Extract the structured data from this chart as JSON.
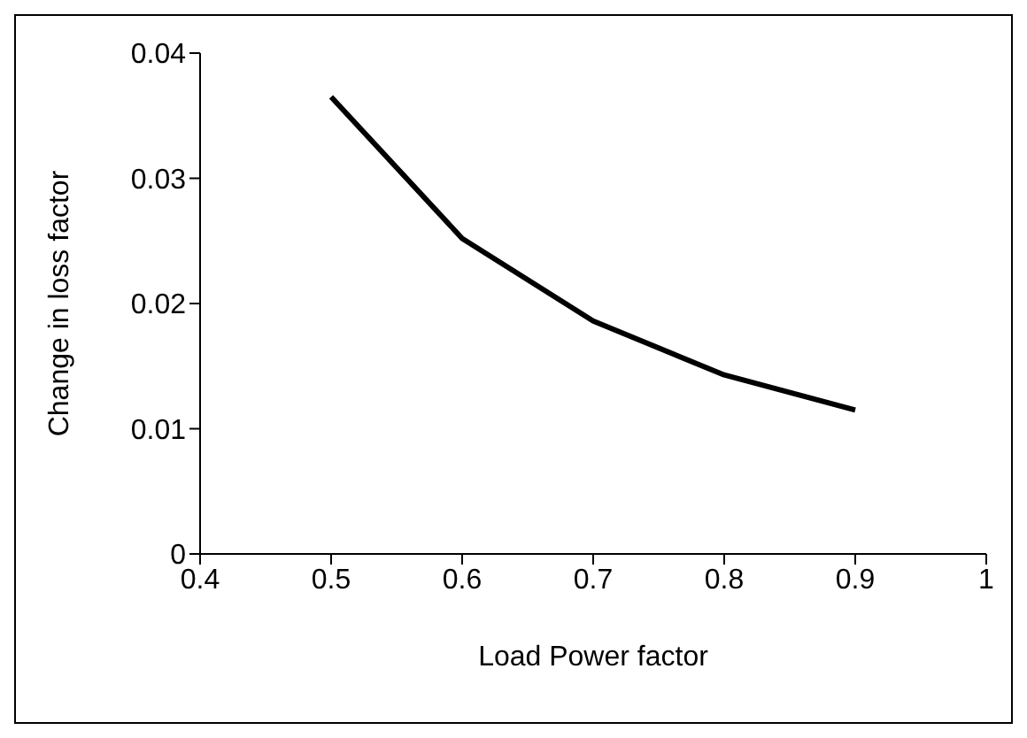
{
  "chart_data": {
    "type": "line",
    "xlabel": "Load Power factor",
    "ylabel": "Change in loss factor",
    "x": [
      0.5,
      0.6,
      0.7,
      0.8,
      0.9
    ],
    "series": [
      {
        "color": "#000000",
        "values": [
          0.0365,
          0.0252,
          0.0186,
          0.0143,
          0.0115
        ]
      }
    ],
    "xlim": [
      0.4,
      1
    ],
    "xticks": [
      0.4,
      0.5,
      0.6,
      0.7,
      0.8,
      0.9,
      1
    ],
    "ylim": [
      0,
      0.04
    ],
    "yticks": [
      0,
      0.01,
      0.02,
      0.03,
      0.04
    ],
    "grid": false,
    "legend": false
  }
}
